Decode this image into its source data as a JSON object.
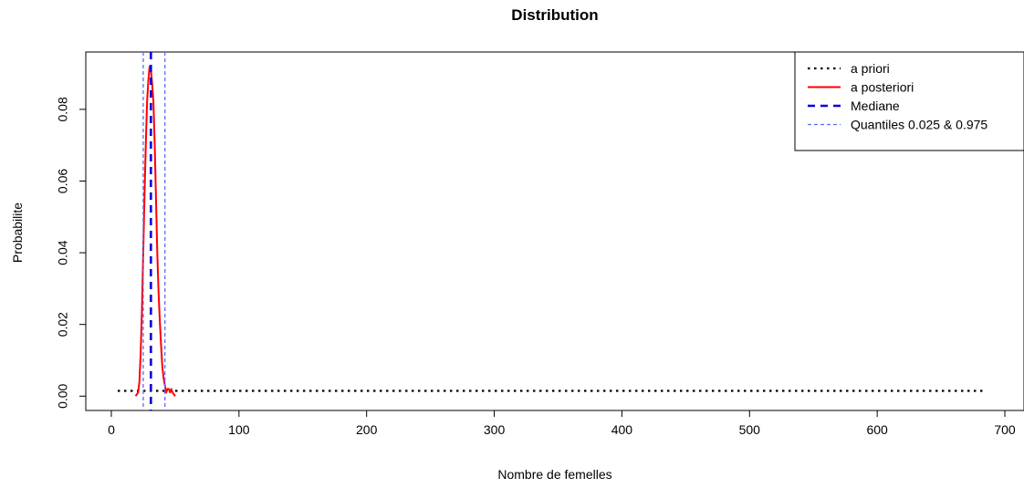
{
  "chart_data": {
    "type": "line",
    "title": "Distribution",
    "xlabel": "Nombre de femelles",
    "ylabel": "Probabilite",
    "xlim": [
      -20,
      715
    ],
    "ylim": [
      -0.004,
      0.096
    ],
    "x_ticks": [
      0,
      100,
      200,
      300,
      400,
      500,
      600,
      700
    ],
    "x_tick_labels": [
      "0",
      "100",
      "200",
      "300",
      "400",
      "500",
      "600",
      "700"
    ],
    "y_ticks": [
      0,
      0.02,
      0.04,
      0.06,
      0.08
    ],
    "y_tick_labels": [
      "0.00",
      "0.02",
      "0.04",
      "0.06",
      "0.08"
    ],
    "grid": false,
    "legend_position": "top-right",
    "series": [
      {
        "name": "a priori",
        "color": "#000000",
        "style": "dotted",
        "x": [
          5,
          685
        ],
        "y": [
          0.00147,
          0.00147
        ]
      },
      {
        "name": "a posteriori",
        "color": "#ff0000",
        "style": "solid",
        "x": [
          19,
          21,
          22,
          23,
          24,
          25,
          26,
          27,
          28,
          29,
          30,
          31,
          32,
          33,
          34,
          35,
          36,
          37,
          38,
          39,
          40,
          41,
          42,
          43,
          44,
          45,
          46,
          47,
          48,
          50
        ],
        "y": [
          0.0,
          0.001,
          0.004,
          0.012,
          0.024,
          0.04,
          0.056,
          0.07,
          0.082,
          0.088,
          0.092,
          0.091,
          0.087,
          0.082,
          0.07,
          0.055,
          0.04,
          0.029,
          0.021,
          0.014,
          0.008,
          0.005,
          0.003,
          0.001,
          0.002,
          0.002,
          0.001,
          0.002,
          0.001,
          0.0
        ]
      }
    ],
    "vlines": [
      {
        "name": "Mediane",
        "color": "#0000dd",
        "style": "dashed",
        "x": 31
      },
      {
        "name": "Quantiles 0.025 & 0.975",
        "color": "#5a6bff",
        "style": "dashed-thin",
        "x": [
          25,
          42
        ]
      }
    ],
    "legend": [
      {
        "label": "a priori",
        "color": "#000000",
        "style": "dotted"
      },
      {
        "label": "a posteriori",
        "color": "#ff0000",
        "style": "solid"
      },
      {
        "label": "Mediane",
        "color": "#0000dd",
        "style": "dashed"
      },
      {
        "label": "Quantiles 0.025 & 0.975",
        "color": "#5a6bff",
        "style": "dashed-thin"
      }
    ]
  }
}
